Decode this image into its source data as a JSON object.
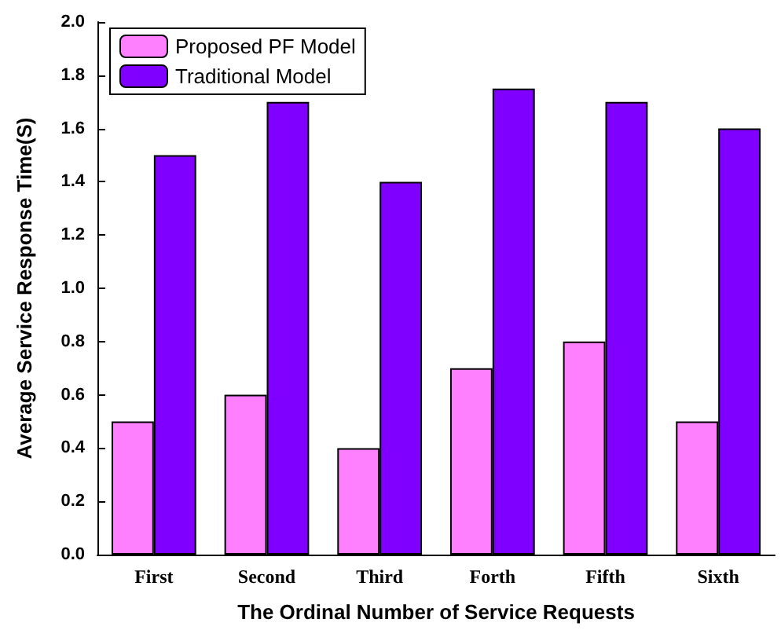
{
  "chart_data": {
    "type": "bar",
    "xlabel": "The Ordinal Number of Service Requests",
    "ylabel": "Average Service Response Time(S)",
    "categories": [
      "First",
      "Second",
      "Third",
      "Forth",
      "Fifth",
      "Sixth"
    ],
    "series": [
      {
        "name": "Proposed PF Model",
        "color": "#ff80ff",
        "values": [
          0.5,
          0.6,
          0.4,
          0.7,
          0.8,
          0.5
        ]
      },
      {
        "name": "Traditional Model",
        "color": "#8000ff",
        "values": [
          1.5,
          1.7,
          1.4,
          1.75,
          1.7,
          1.6
        ]
      }
    ],
    "ylim": [
      0,
      2
    ],
    "yticks": [
      {
        "value": 0,
        "label": "0.0"
      },
      {
        "value": 0.2,
        "label": "0.2"
      },
      {
        "value": 0.4,
        "label": "0.4"
      },
      {
        "value": 0.6,
        "label": "0.6"
      },
      {
        "value": 0.8,
        "label": "0.8"
      },
      {
        "value": 1,
        "label": "1.0"
      },
      {
        "value": 1.2,
        "label": "1.2"
      },
      {
        "value": 1.4,
        "label": "1.4"
      },
      {
        "value": 1.6,
        "label": "1.6"
      },
      {
        "value": 1.8,
        "label": "1.8"
      },
      {
        "value": 2,
        "label": "2.0"
      }
    ],
    "grid": false,
    "legend": "top left"
  }
}
